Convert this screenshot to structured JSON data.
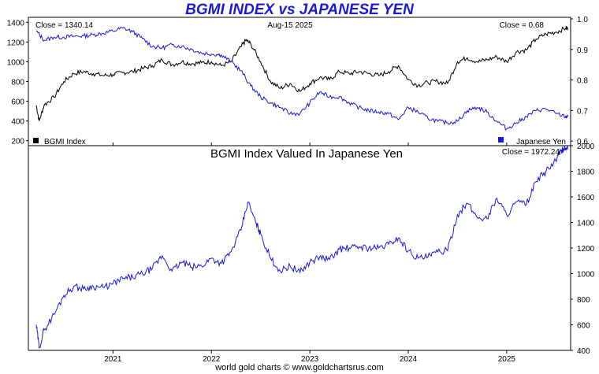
{
  "title": "BGMI INDEX vs JAPANESE YEN",
  "footer": "world gold charts © www.goldchartsrus.com",
  "colors": {
    "title": "#1a1ad6",
    "bgmi": "#000000",
    "yen": "#1a1ad6",
    "combined": "#1a1ad6"
  },
  "chart_data": [
    {
      "type": "line",
      "panel": "top",
      "annotations": {
        "close_left": "Close = 1340.14",
        "date": "Aug-15  2025",
        "close_right": "Close = 0.68"
      },
      "y_left_ticks": [
        "1400",
        "1200",
        "1000",
        "800",
        "600",
        "400",
        "200"
      ],
      "y_left_range": [
        150,
        1450
      ],
      "y_right_ticks": [
        "1.0",
        "0.9",
        "0.8",
        "0.7",
        "0.6"
      ],
      "y_right_range": [
        0.585,
        1.005
      ],
      "legend_placement": "bottom",
      "series": [
        {
          "name": "BGMI Index",
          "axis": "left",
          "color": "#000000",
          "points": [
            [
              2020.22,
              560
            ],
            [
              2020.25,
              400
            ],
            [
              2020.3,
              560
            ],
            [
              2020.4,
              640
            ],
            [
              2020.5,
              800
            ],
            [
              2020.6,
              880
            ],
            [
              2020.7,
              900
            ],
            [
              2020.8,
              880
            ],
            [
              2020.9,
              860
            ],
            [
              2021.0,
              870
            ],
            [
              2021.1,
              890
            ],
            [
              2021.2,
              900
            ],
            [
              2021.3,
              930
            ],
            [
              2021.4,
              960
            ],
            [
              2021.5,
              1020
            ],
            [
              2021.6,
              970
            ],
            [
              2021.7,
              1000
            ],
            [
              2021.8,
              980
            ],
            [
              2021.9,
              990
            ],
            [
              2022.0,
              1000
            ],
            [
              2022.1,
              960
            ],
            [
              2022.2,
              1000
            ],
            [
              2022.3,
              1150
            ],
            [
              2022.35,
              1220
            ],
            [
              2022.4,
              1180
            ],
            [
              2022.5,
              1000
            ],
            [
              2022.6,
              800
            ],
            [
              2022.7,
              730
            ],
            [
              2022.8,
              780
            ],
            [
              2022.9,
              700
            ],
            [
              2023.0,
              780
            ],
            [
              2023.1,
              840
            ],
            [
              2023.2,
              820
            ],
            [
              2023.3,
              900
            ],
            [
              2023.4,
              880
            ],
            [
              2023.5,
              900
            ],
            [
              2023.6,
              880
            ],
            [
              2023.7,
              860
            ],
            [
              2023.8,
              900
            ],
            [
              2023.9,
              960
            ],
            [
              2024.0,
              820
            ],
            [
              2024.1,
              760
            ],
            [
              2024.2,
              790
            ],
            [
              2024.3,
              800
            ],
            [
              2024.4,
              780
            ],
            [
              2024.5,
              1000
            ],
            [
              2024.6,
              1040
            ],
            [
              2024.7,
              1000
            ],
            [
              2024.8,
              1020
            ],
            [
              2024.9,
              1050
            ],
            [
              2025.0,
              1000
            ],
            [
              2025.1,
              1100
            ],
            [
              2025.2,
              1120
            ],
            [
              2025.3,
              1230
            ],
            [
              2025.4,
              1280
            ],
            [
              2025.5,
              1300
            ],
            [
              2025.6,
              1340
            ],
            [
              2025.62,
              1340
            ]
          ]
        },
        {
          "name": "Japanese Yen",
          "axis": "right",
          "color": "#1a1ad6",
          "points": [
            [
              2020.22,
              0.96
            ],
            [
              2020.3,
              0.93
            ],
            [
              2020.4,
              0.94
            ],
            [
              2020.5,
              0.94
            ],
            [
              2020.6,
              0.943
            ],
            [
              2020.7,
              0.944
            ],
            [
              2020.8,
              0.948
            ],
            [
              2020.9,
              0.953
            ],
            [
              2021.0,
              0.96
            ],
            [
              2021.1,
              0.97
            ],
            [
              2021.2,
              0.958
            ],
            [
              2021.3,
              0.935
            ],
            [
              2021.4,
              0.91
            ],
            [
              2021.5,
              0.905
            ],
            [
              2021.6,
              0.915
            ],
            [
              2021.7,
              0.91
            ],
            [
              2021.8,
              0.9
            ],
            [
              2021.9,
              0.888
            ],
            [
              2022.0,
              0.885
            ],
            [
              2022.1,
              0.882
            ],
            [
              2022.2,
              0.86
            ],
            [
              2022.3,
              0.83
            ],
            [
              2022.4,
              0.78
            ],
            [
              2022.5,
              0.745
            ],
            [
              2022.6,
              0.725
            ],
            [
              2022.7,
              0.71
            ],
            [
              2022.8,
              0.69
            ],
            [
              2022.9,
              0.69
            ],
            [
              2023.0,
              0.725
            ],
            [
              2023.1,
              0.76
            ],
            [
              2023.2,
              0.745
            ],
            [
              2023.3,
              0.745
            ],
            [
              2023.4,
              0.725
            ],
            [
              2023.5,
              0.71
            ],
            [
              2023.6,
              0.7
            ],
            [
              2023.7,
              0.695
            ],
            [
              2023.8,
              0.69
            ],
            [
              2023.9,
              0.67
            ],
            [
              2024.0,
              0.71
            ],
            [
              2024.1,
              0.695
            ],
            [
              2024.2,
              0.675
            ],
            [
              2024.3,
              0.665
            ],
            [
              2024.4,
              0.66
            ],
            [
              2024.5,
              0.665
            ],
            [
              2024.6,
              0.7
            ],
            [
              2024.7,
              0.71
            ],
            [
              2024.8,
              0.695
            ],
            [
              2024.9,
              0.665
            ],
            [
              2025.0,
              0.64
            ],
            [
              2025.1,
              0.66
            ],
            [
              2025.2,
              0.68
            ],
            [
              2025.3,
              0.7
            ],
            [
              2025.4,
              0.705
            ],
            [
              2025.5,
              0.69
            ],
            [
              2025.6,
              0.68
            ],
            [
              2025.62,
              0.68
            ]
          ]
        }
      ]
    },
    {
      "type": "line",
      "panel": "bottom",
      "title": "BGMI Index Valued In Japanese Yen",
      "annotations": {
        "close_right": "Close = 1972.24"
      },
      "y_right_ticks": [
        "2000",
        "1800",
        "1600",
        "1400",
        "1200",
        "1000",
        "800",
        "600",
        "400"
      ],
      "y_range": [
        400,
        2000
      ],
      "x_ticks": [
        "2021",
        "2022",
        "2023",
        "2024",
        "2025"
      ],
      "x_range": [
        2020.14,
        2025.65
      ],
      "series": [
        {
          "color": "#1a1ad6",
          "points": [
            [
              2020.22,
              600
            ],
            [
              2020.25,
              420
            ],
            [
              2020.3,
              560
            ],
            [
              2020.4,
              680
            ],
            [
              2020.5,
              830
            ],
            [
              2020.6,
              900
            ],
            [
              2020.7,
              880
            ],
            [
              2020.8,
              900
            ],
            [
              2020.9,
              890
            ],
            [
              2021.0,
              920
            ],
            [
              2021.1,
              960
            ],
            [
              2021.2,
              970
            ],
            [
              2021.3,
              1000
            ],
            [
              2021.4,
              1040
            ],
            [
              2021.5,
              1140
            ],
            [
              2021.6,
              1020
            ],
            [
              2021.7,
              1090
            ],
            [
              2021.8,
              1050
            ],
            [
              2021.9,
              1060
            ],
            [
              2022.0,
              1120
            ],
            [
              2022.1,
              1080
            ],
            [
              2022.2,
              1170
            ],
            [
              2022.3,
              1340
            ],
            [
              2022.37,
              1560
            ],
            [
              2022.45,
              1400
            ],
            [
              2022.5,
              1310
            ],
            [
              2022.6,
              1120
            ],
            [
              2022.7,
              1020
            ],
            [
              2022.8,
              1060
            ],
            [
              2022.9,
              1010
            ],
            [
              2023.0,
              1090
            ],
            [
              2023.1,
              1130
            ],
            [
              2023.2,
              1110
            ],
            [
              2023.3,
              1190
            ],
            [
              2023.4,
              1200
            ],
            [
              2023.5,
              1210
            ],
            [
              2023.6,
              1200
            ],
            [
              2023.7,
              1200
            ],
            [
              2023.8,
              1230
            ],
            [
              2023.9,
              1280
            ],
            [
              2024.0,
              1180
            ],
            [
              2024.1,
              1120
            ],
            [
              2024.2,
              1130
            ],
            [
              2024.3,
              1170
            ],
            [
              2024.4,
              1180
            ],
            [
              2024.5,
              1460
            ],
            [
              2024.6,
              1550
            ],
            [
              2024.7,
              1440
            ],
            [
              2024.8,
              1430
            ],
            [
              2024.9,
              1590
            ],
            [
              2025.0,
              1460
            ],
            [
              2025.1,
              1560
            ],
            [
              2025.2,
              1540
            ],
            [
              2025.3,
              1720
            ],
            [
              2025.4,
              1800
            ],
            [
              2025.5,
              1880
            ],
            [
              2025.55,
              1960
            ],
            [
              2025.6,
              1980
            ],
            [
              2025.62,
              1972
            ]
          ]
        }
      ]
    }
  ]
}
